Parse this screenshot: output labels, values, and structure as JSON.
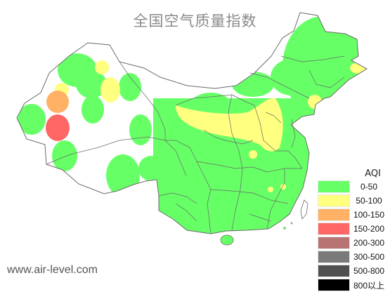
{
  "title": "全国空气质量指数",
  "legend": {
    "title": "AQI",
    "items": [
      {
        "label": "0-50",
        "color": "#66ff66"
      },
      {
        "label": "50-100",
        "color": "#ffff80"
      },
      {
        "label": "100-150",
        "color": "#ffb266"
      },
      {
        "label": "150-200",
        "color": "#ff6666"
      },
      {
        "label": "200-300",
        "color": "#b87373"
      },
      {
        "label": "300-500",
        "color": "#7a7a7a"
      },
      {
        "label": "500-800",
        "color": "#505050"
      },
      {
        "label": "800以上",
        "color": "#000000"
      }
    ]
  },
  "website": "www.air-level.com",
  "map": {
    "region": "China",
    "boundary_color": "#6a6a6a",
    "background_color": "#ffffff"
  }
}
